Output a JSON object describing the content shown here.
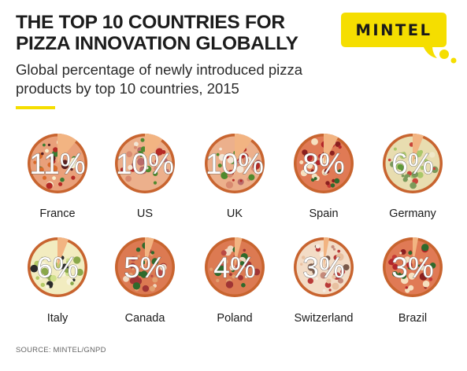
{
  "header": {
    "title": "THE TOP 10 COUNTRIES FOR PIZZA INNOVATION GLOBALLY",
    "subtitle": "Global percentage of newly introduced pizza products by top 10 countries, 2015"
  },
  "logo": {
    "text": "MINTEL",
    "color": "#f5de00"
  },
  "source": "SOURCE: MINTEL/GNPD",
  "colors": {
    "accent": "#f5de00",
    "crust": "#c8642f",
    "slice_gap": "#f2b482",
    "percent_text": "#ffffff"
  },
  "chart_data": {
    "type": "pie",
    "unit": "%",
    "categories": [
      "France",
      "US",
      "UK",
      "Spain",
      "Germany",
      "Italy",
      "Canada",
      "Poland",
      "Switzerland",
      "Brazil"
    ],
    "values": [
      11,
      10,
      10,
      8,
      6,
      6,
      5,
      4,
      3,
      3
    ],
    "value_labels": [
      "11%",
      "10%",
      "10%",
      "8%",
      "6%",
      "6%",
      "5%",
      "4%",
      "3%",
      "3%"
    ],
    "toppings": [
      "mixed",
      "sausage",
      "sausage",
      "pepperoni",
      "vegetable",
      "cheese",
      "salami",
      "salami",
      "mushroom",
      "pepperoni"
    ]
  }
}
